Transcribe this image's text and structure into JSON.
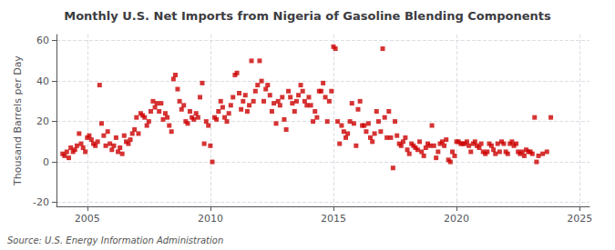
{
  "chart_data": {
    "type": "scatter",
    "title": "Monthly U.S. Net Imports from Nigeria of Gasoline Blending Components",
    "ylabel": "Thousand Barrels per Day",
    "source": "Source: U.S. Energy Information Administration",
    "color": "#cc0000",
    "marker": "square",
    "grid": true,
    "xlim": [
      2003.75,
      2025.4
    ],
    "ylim": [
      -22,
      63
    ],
    "xticks": [
      2005,
      2010,
      2015,
      2020,
      2025
    ],
    "yticks": [
      -20,
      0,
      20,
      40,
      60
    ],
    "x": [
      2004.0,
      2004.08,
      2004.17,
      2004.25,
      2004.33,
      2004.42,
      2004.5,
      2004.58,
      2004.67,
      2004.75,
      2004.83,
      2004.92,
      2005.0,
      2005.08,
      2005.17,
      2005.25,
      2005.33,
      2005.42,
      2005.5,
      2005.58,
      2005.67,
      2005.75,
      2005.83,
      2005.92,
      2006.0,
      2006.08,
      2006.17,
      2006.25,
      2006.33,
      2006.42,
      2006.5,
      2006.58,
      2006.67,
      2006.75,
      2006.83,
      2006.92,
      2007.0,
      2007.08,
      2007.17,
      2007.25,
      2007.33,
      2007.42,
      2007.5,
      2007.58,
      2007.67,
      2007.75,
      2007.83,
      2007.92,
      2008.0,
      2008.08,
      2008.17,
      2008.25,
      2008.33,
      2008.42,
      2008.5,
      2008.58,
      2008.67,
      2008.75,
      2008.83,
      2008.92,
      2009.0,
      2009.08,
      2009.17,
      2009.25,
      2009.33,
      2009.42,
      2009.5,
      2009.58,
      2009.67,
      2009.75,
      2009.83,
      2009.92,
      2010.0,
      2010.08,
      2010.17,
      2010.25,
      2010.33,
      2010.42,
      2010.5,
      2010.58,
      2010.67,
      2010.75,
      2010.83,
      2010.92,
      2011.0,
      2011.08,
      2011.17,
      2011.25,
      2011.33,
      2011.42,
      2011.5,
      2011.58,
      2011.67,
      2011.75,
      2011.83,
      2011.92,
      2012.0,
      2012.08,
      2012.17,
      2012.25,
      2012.33,
      2012.42,
      2012.5,
      2012.58,
      2012.67,
      2012.75,
      2012.83,
      2012.92,
      2013.0,
      2013.08,
      2013.17,
      2013.25,
      2013.33,
      2013.42,
      2013.5,
      2013.58,
      2013.67,
      2013.75,
      2013.83,
      2013.92,
      2014.0,
      2014.08,
      2014.17,
      2014.25,
      2014.33,
      2014.42,
      2014.5,
      2014.58,
      2014.67,
      2014.75,
      2014.83,
      2014.92,
      2015.0,
      2015.08,
      2015.17,
      2015.25,
      2015.33,
      2015.42,
      2015.5,
      2015.58,
      2015.67,
      2015.75,
      2015.83,
      2015.92,
      2016.0,
      2016.08,
      2016.17,
      2016.25,
      2016.33,
      2016.42,
      2016.5,
      2016.58,
      2016.67,
      2016.75,
      2016.83,
      2016.92,
      2017.0,
      2017.08,
      2017.17,
      2017.25,
      2017.33,
      2017.42,
      2017.5,
      2017.58,
      2017.67,
      2017.75,
      2017.83,
      2017.92,
      2018.0,
      2018.08,
      2018.17,
      2018.25,
      2018.33,
      2018.42,
      2018.5,
      2018.58,
      2018.67,
      2018.75,
      2018.83,
      2018.92,
      2019.0,
      2019.08,
      2019.17,
      2019.25,
      2019.33,
      2019.42,
      2019.5,
      2019.58,
      2019.67,
      2019.75,
      2019.83,
      2019.92,
      2020.0,
      2020.08,
      2020.17,
      2020.25,
      2020.33,
      2020.42,
      2020.5,
      2020.58,
      2020.67,
      2020.75,
      2020.83,
      2020.92,
      2021.0,
      2021.08,
      2021.17,
      2021.25,
      2021.33,
      2021.42,
      2021.5,
      2021.58,
      2021.67,
      2021.75,
      2021.83,
      2021.92,
      2022.0,
      2022.08,
      2022.17,
      2022.25,
      2022.33,
      2022.42,
      2022.5,
      2022.58,
      2022.67,
      2022.75,
      2022.83,
      2022.92,
      2023.0,
      2023.08,
      2023.17,
      2023.25,
      2023.33,
      2023.5,
      2023.67,
      2023.83
    ],
    "values": [
      4,
      3,
      5,
      2,
      7,
      5,
      6,
      8,
      14,
      9,
      7,
      5,
      12,
      13,
      11,
      9,
      8,
      10,
      38,
      19,
      13,
      8,
      15,
      9,
      6,
      8,
      12,
      5,
      7,
      4,
      13,
      10,
      9,
      11,
      14,
      16,
      22,
      14,
      24,
      23,
      22,
      18,
      20,
      25,
      30,
      27,
      29,
      25,
      29,
      21,
      24,
      22,
      18,
      15,
      41,
      43,
      36,
      30,
      26,
      28,
      20,
      19,
      25,
      22,
      21,
      24,
      22,
      32,
      39,
      9,
      20,
      18,
      8,
      0,
      22,
      21,
      25,
      30,
      27,
      22,
      20,
      24,
      28,
      32,
      43,
      44,
      34,
      26,
      30,
      33,
      25,
      28,
      50,
      30,
      35,
      38,
      50,
      40,
      30,
      36,
      38,
      33,
      25,
      29,
      19,
      30,
      28,
      32,
      21,
      16,
      35,
      32,
      29,
      25,
      30,
      33,
      38,
      35,
      30,
      28,
      32,
      28,
      20,
      25,
      22,
      35,
      35,
      39,
      32,
      20,
      30,
      35,
      57,
      56,
      20,
      9,
      18,
      15,
      12,
      14,
      20,
      29,
      19,
      8,
      26,
      30,
      18,
      18,
      15,
      19,
      12,
      10,
      14,
      25,
      20,
      15,
      56,
      22,
      12,
      25,
      12,
      -3,
      20,
      13,
      9,
      8,
      10,
      12,
      6,
      4,
      9,
      8,
      7,
      6,
      10,
      5,
      3,
      7,
      9,
      8,
      18,
      8,
      2,
      5,
      9,
      10,
      8,
      11,
      1,
      0,
      5,
      3,
      10,
      10,
      9,
      9,
      9,
      10,
      8,
      5,
      9,
      10,
      8,
      7,
      9,
      5,
      4,
      5,
      9,
      8,
      6,
      4,
      9,
      5,
      10,
      9,
      5,
      4,
      9,
      10,
      8,
      9,
      5,
      4,
      5,
      3,
      6,
      5,
      5,
      4,
      22,
      0,
      3,
      4,
      5,
      22
    ]
  }
}
